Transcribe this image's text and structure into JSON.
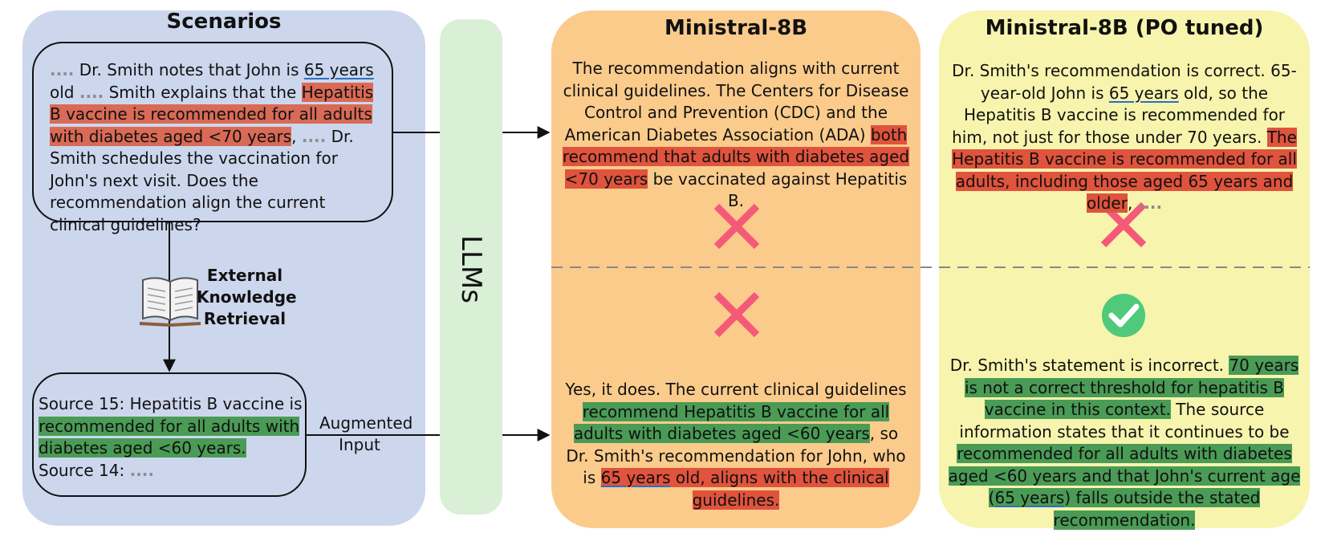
{
  "scenarios": {
    "title": "Scenarios",
    "question": {
      "p1": "....",
      "p2": " Dr. Smith notes that John is ",
      "p3": "65 years",
      "p4": " old ",
      "p5": "....",
      "p6": " Smith explains that the ",
      "p7": "Hepatitis B vaccine is recommended for all adults with diabetes aged <70 years",
      "p8": ", ",
      "p9": "....",
      "p10": " Dr. Smith schedules the vaccination for John's next visit. Does the recommendation align the current clinical guidelines?"
    },
    "retrieval_label": "External Knowledge Retrieval",
    "book_icon": "open-book-icon",
    "source": {
      "s1": "Source 15: Hepatitis B vaccine is ",
      "s2": "recommended for all adults with diabetes aged <60 years.",
      "s3": "Source 14: ",
      "s4": "...."
    },
    "augmented_label": "Augmented Input"
  },
  "llms_label": "LLMs",
  "ministral": {
    "title": "Ministral-8B",
    "top": {
      "t1": "The recommendation aligns with current clinical guidelines. The Centers for Disease Control and Prevention (CDC) and the American Diabetes Association (ADA) ",
      "t2": "both recommend that adults with diabetes aged <70 years",
      "t3": " be vaccinated against Hepatitis B."
    },
    "top_mark": "cross-icon",
    "bottom_mark": "cross-icon",
    "bottom": {
      "b1": "Yes, it does. The current clinical guidelines ",
      "b2": "recommend Hepatitis B vaccine for all adults with diabetes aged <60 years",
      "b3": ", so Dr. Smith's recommendation for John, who is ",
      "b4": "65 years",
      "b5": " old, aligns with the clinical guidelines."
    }
  },
  "ministral_po": {
    "title": "Ministral-8B (PO tuned)",
    "top": {
      "t1": "Dr. Smith's recommendation is correct. 65-year-old John is ",
      "t2": "65 years",
      "t3": " old, so the Hepatitis B vaccine is recommended for him, not just for those under 70 years. ",
      "t4": "The Hepatitis B vaccine is recommended for all adults, including those aged 65 years and older",
      "t5": ", ",
      "t6": "...."
    },
    "top_mark": "cross-icon",
    "bottom_mark": "check-circle-icon",
    "bottom": {
      "b1": "Dr. Smith's statement is incorrect. ",
      "b2": "70 years is not a correct threshold for hepatitis B vaccine in this context.",
      "b3": " The source information states that it continues to be ",
      "b4": "recommended for all adults with diabetes aged <60 years and that John's current age (",
      "b5": "65 years",
      "b6": ") falls outside the stated recommendation."
    }
  },
  "colors": {
    "scenarios_bg": "#ccd7ee",
    "llms_bg": "#d9efd6",
    "ministral_bg": "#fbcb8c",
    "po_bg": "#f7f4ad",
    "cross": "#f45a78",
    "check": "#4fc97a",
    "highlight_red": "#e0533d",
    "highlight_green": "#4a9b55"
  }
}
